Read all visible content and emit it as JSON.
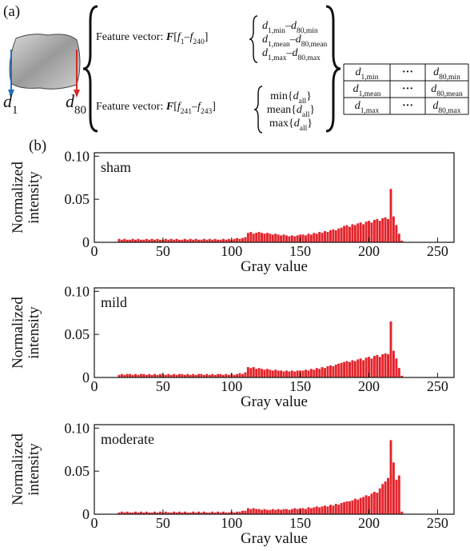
{
  "diagram": {
    "panel": "(a)",
    "d1": [
      "d",
      "1"
    ],
    "d80": [
      "d",
      "80"
    ],
    "feature1": [
      "Feature vector: ",
      "F",
      "[",
      "f",
      "1",
      "–",
      "f",
      "240",
      "]"
    ],
    "stats1": [
      [
        "d",
        "1,min",
        "–",
        "d",
        "80,min"
      ],
      [
        "d",
        "1,mean",
        "–",
        "d",
        "80,mean"
      ],
      [
        "d",
        "1,max",
        "–",
        "d",
        "80,max"
      ]
    ],
    "feature2": [
      "Feature vector: ",
      "F",
      "[",
      "f",
      "241",
      "–",
      "f",
      "243",
      "]"
    ],
    "stats2": [
      [
        "min{",
        "d",
        "all",
        "}"
      ],
      [
        "mean{",
        "d",
        "all",
        "}"
      ],
      [
        "max{",
        "d",
        "all",
        "}"
      ]
    ],
    "table": [
      [
        [
          "d",
          "1,min"
        ],
        "···",
        [
          "d",
          "80,min"
        ]
      ],
      [
        [
          "d",
          "1,mean"
        ],
        "···",
        [
          "d",
          "80,mean"
        ]
      ],
      [
        [
          "d",
          "1,max"
        ],
        "···",
        [
          "d",
          "80,max"
        ]
      ]
    ]
  },
  "panel_b": "(b)",
  "chart_data": [
    {
      "type": "bar",
      "title": "sham",
      "xlabel": "Gray value",
      "ylabel": [
        "Normalized",
        "intensity"
      ],
      "color": "#e3242b",
      "xlim": [
        0,
        262
      ],
      "ylim": [
        0,
        0.104
      ],
      "xticks": [
        0,
        50,
        100,
        150,
        200,
        250
      ],
      "yticks": [
        0,
        0.05,
        {
          "value": 0.1,
          "label": "0.10"
        }
      ],
      "x": [
        18,
        20,
        22,
        24,
        26,
        28,
        30,
        32,
        34,
        36,
        38,
        40,
        42,
        44,
        46,
        48,
        50,
        52,
        54,
        56,
        58,
        60,
        62,
        64,
        66,
        68,
        70,
        72,
        74,
        76,
        78,
        80,
        82,
        84,
        86,
        88,
        90,
        92,
        94,
        96,
        98,
        100,
        102,
        104,
        106,
        108,
        110,
        112,
        114,
        116,
        118,
        120,
        122,
        124,
        126,
        128,
        130,
        132,
        134,
        136,
        138,
        140,
        142,
        144,
        146,
        148,
        150,
        152,
        154,
        156,
        158,
        160,
        162,
        164,
        166,
        168,
        170,
        172,
        174,
        176,
        178,
        180,
        182,
        184,
        186,
        188,
        190,
        192,
        194,
        196,
        198,
        200,
        202,
        204,
        206,
        208,
        210,
        212,
        214,
        216,
        218,
        220,
        222,
        224
      ],
      "values": [
        0.004,
        0.003,
        0.004,
        0.003,
        0.003,
        0.004,
        0.003,
        0.004,
        0.003,
        0.003,
        0.004,
        0.003,
        0.004,
        0.003,
        0.004,
        0.003,
        0.003,
        0.004,
        0.003,
        0.004,
        0.003,
        0.004,
        0.003,
        0.003,
        0.004,
        0.003,
        0.004,
        0.003,
        0.004,
        0.003,
        0.003,
        0.004,
        0.003,
        0.004,
        0.003,
        0.004,
        0.003,
        0.003,
        0.004,
        0.003,
        0.004,
        0.003,
        0.004,
        0.005,
        0.004,
        0.005,
        0.006,
        0.011,
        0.012,
        0.01,
        0.011,
        0.012,
        0.011,
        0.01,
        0.011,
        0.01,
        0.009,
        0.01,
        0.009,
        0.008,
        0.009,
        0.008,
        0.007,
        0.008,
        0.007,
        0.008,
        0.009,
        0.009,
        0.008,
        0.01,
        0.009,
        0.011,
        0.01,
        0.012,
        0.011,
        0.013,
        0.012,
        0.014,
        0.015,
        0.014,
        0.016,
        0.017,
        0.019,
        0.02,
        0.018,
        0.021,
        0.02,
        0.022,
        0.023,
        0.021,
        0.024,
        0.025,
        0.023,
        0.026,
        0.027,
        0.025,
        0.028,
        0.029,
        0.027,
        0.062,
        0.03,
        0.02,
        0.01,
        0.002
      ]
    },
    {
      "type": "bar",
      "title": "mild",
      "xlabel": "Gray value",
      "ylabel": [
        "Normalized",
        "intensity"
      ],
      "color": "#e3242b",
      "xlim": [
        0,
        262
      ],
      "ylim": [
        0,
        0.104
      ],
      "xticks": [
        0,
        50,
        100,
        150,
        200,
        250
      ],
      "yticks": [
        0,
        0.05,
        {
          "value": 0.1,
          "label": "0.10"
        }
      ],
      "x": [
        18,
        20,
        22,
        24,
        26,
        28,
        30,
        32,
        34,
        36,
        38,
        40,
        42,
        44,
        46,
        48,
        50,
        52,
        54,
        56,
        58,
        60,
        62,
        64,
        66,
        68,
        70,
        72,
        74,
        76,
        78,
        80,
        82,
        84,
        86,
        88,
        90,
        92,
        94,
        96,
        98,
        100,
        102,
        104,
        106,
        108,
        110,
        112,
        114,
        116,
        118,
        120,
        122,
        124,
        126,
        128,
        130,
        132,
        134,
        136,
        138,
        140,
        142,
        144,
        146,
        148,
        150,
        152,
        154,
        156,
        158,
        160,
        162,
        164,
        166,
        168,
        170,
        172,
        174,
        176,
        178,
        180,
        182,
        184,
        186,
        188,
        190,
        192,
        194,
        196,
        198,
        200,
        202,
        204,
        206,
        208,
        210,
        212,
        214,
        216,
        218,
        220,
        222,
        224
      ],
      "values": [
        0.003,
        0.004,
        0.003,
        0.004,
        0.004,
        0.003,
        0.004,
        0.003,
        0.004,
        0.004,
        0.003,
        0.004,
        0.003,
        0.004,
        0.003,
        0.004,
        0.004,
        0.003,
        0.004,
        0.003,
        0.004,
        0.003,
        0.004,
        0.004,
        0.003,
        0.004,
        0.003,
        0.004,
        0.003,
        0.004,
        0.004,
        0.003,
        0.004,
        0.003,
        0.004,
        0.003,
        0.004,
        0.004,
        0.003,
        0.004,
        0.003,
        0.004,
        0.003,
        0.004,
        0.005,
        0.004,
        0.006,
        0.012,
        0.011,
        0.012,
        0.01,
        0.011,
        0.01,
        0.009,
        0.01,
        0.009,
        0.008,
        0.009,
        0.008,
        0.008,
        0.007,
        0.008,
        0.007,
        0.008,
        0.007,
        0.008,
        0.008,
        0.008,
        0.009,
        0.008,
        0.01,
        0.009,
        0.011,
        0.01,
        0.012,
        0.011,
        0.013,
        0.014,
        0.013,
        0.015,
        0.016,
        0.017,
        0.018,
        0.019,
        0.018,
        0.02,
        0.019,
        0.021,
        0.022,
        0.02,
        0.023,
        0.024,
        0.022,
        0.025,
        0.026,
        0.024,
        0.027,
        0.028,
        0.027,
        0.065,
        0.031,
        0.022,
        0.011,
        0.002
      ]
    },
    {
      "type": "bar",
      "title": "moderate",
      "xlabel": "Gray value",
      "ylabel": [
        "Normalized",
        "intensity"
      ],
      "color": "#e3242b",
      "xlim": [
        0,
        262
      ],
      "ylim": [
        0,
        0.104
      ],
      "xticks": [
        0,
        50,
        100,
        150,
        200,
        250
      ],
      "yticks": [
        0,
        0.05,
        {
          "value": 0.1,
          "label": "0.10"
        }
      ],
      "x": [
        18,
        20,
        22,
        24,
        26,
        28,
        30,
        32,
        34,
        36,
        38,
        40,
        42,
        44,
        46,
        48,
        50,
        52,
        54,
        56,
        58,
        60,
        62,
        64,
        66,
        68,
        70,
        72,
        74,
        76,
        78,
        80,
        82,
        84,
        86,
        88,
        90,
        92,
        94,
        96,
        98,
        100,
        102,
        104,
        106,
        108,
        110,
        112,
        114,
        116,
        118,
        120,
        122,
        124,
        126,
        128,
        130,
        132,
        134,
        136,
        138,
        140,
        142,
        144,
        146,
        148,
        150,
        152,
        154,
        156,
        158,
        160,
        162,
        164,
        166,
        168,
        170,
        172,
        174,
        176,
        178,
        180,
        182,
        184,
        186,
        188,
        190,
        192,
        194,
        196,
        198,
        200,
        202,
        204,
        206,
        208,
        210,
        212,
        214,
        216,
        218,
        220,
        222,
        224
      ],
      "values": [
        0.002,
        0.003,
        0.002,
        0.003,
        0.002,
        0.002,
        0.003,
        0.002,
        0.003,
        0.002,
        0.003,
        0.002,
        0.002,
        0.003,
        0.002,
        0.003,
        0.002,
        0.003,
        0.002,
        0.002,
        0.003,
        0.002,
        0.003,
        0.002,
        0.003,
        0.002,
        0.002,
        0.003,
        0.002,
        0.003,
        0.002,
        0.003,
        0.002,
        0.002,
        0.003,
        0.002,
        0.003,
        0.002,
        0.003,
        0.002,
        0.002,
        0.003,
        0.002,
        0.003,
        0.003,
        0.004,
        0.004,
        0.007,
        0.006,
        0.007,
        0.006,
        0.006,
        0.005,
        0.006,
        0.005,
        0.005,
        0.006,
        0.005,
        0.006,
        0.005,
        0.006,
        0.006,
        0.005,
        0.006,
        0.007,
        0.006,
        0.007,
        0.007,
        0.006,
        0.008,
        0.007,
        0.008,
        0.009,
        0.008,
        0.009,
        0.01,
        0.009,
        0.011,
        0.01,
        0.012,
        0.011,
        0.013,
        0.014,
        0.015,
        0.015,
        0.016,
        0.018,
        0.017,
        0.019,
        0.02,
        0.022,
        0.021,
        0.024,
        0.026,
        0.025,
        0.03,
        0.035,
        0.038,
        0.042,
        0.086,
        0.06,
        0.04,
        0.045,
        0.003
      ]
    }
  ]
}
